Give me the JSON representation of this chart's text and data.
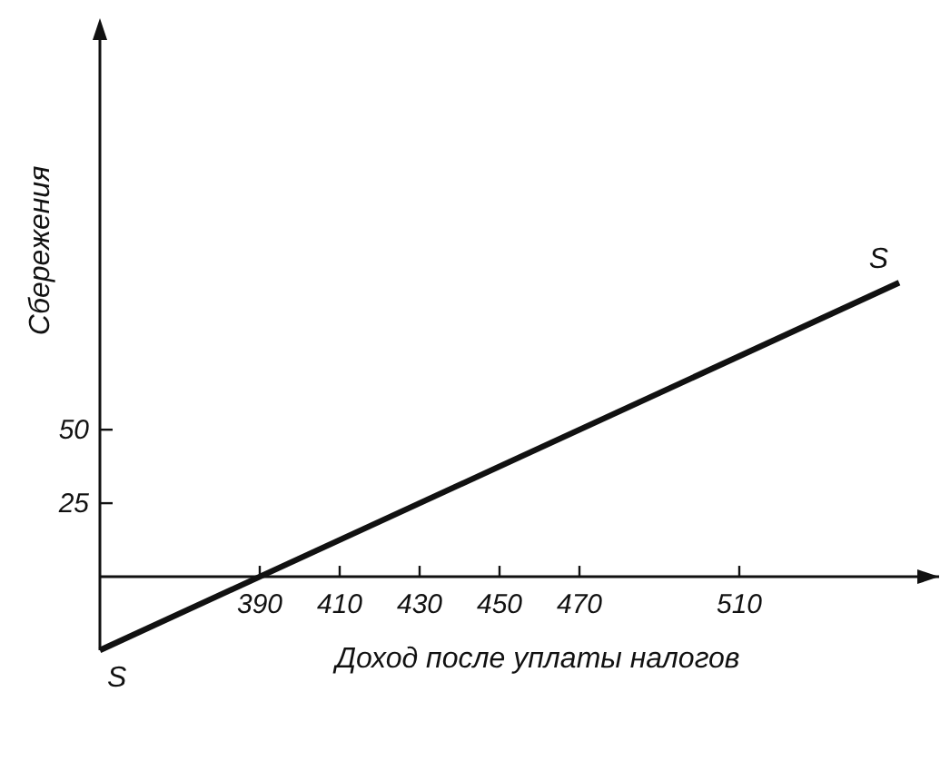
{
  "chart_data": {
    "type": "line",
    "xlabel": "Доход после уплаты налогов",
    "ylabel": "Сбережения",
    "x": [
      350,
      550
    ],
    "series": [
      {
        "color": "#111111",
        "values": [
          -25,
          100
        ]
      }
    ],
    "xlim": [
      350,
      560
    ],
    "ylim": [
      -25,
      185
    ],
    "xticks": [
      390,
      410,
      430,
      450,
      470,
      510
    ],
    "yticks": [
      25,
      50
    ],
    "annotations": [
      {
        "text": "S",
        "x": 350,
        "y": -25
      },
      {
        "text": "S",
        "x": 550,
        "y": 100
      }
    ],
    "line_style": "solid"
  }
}
